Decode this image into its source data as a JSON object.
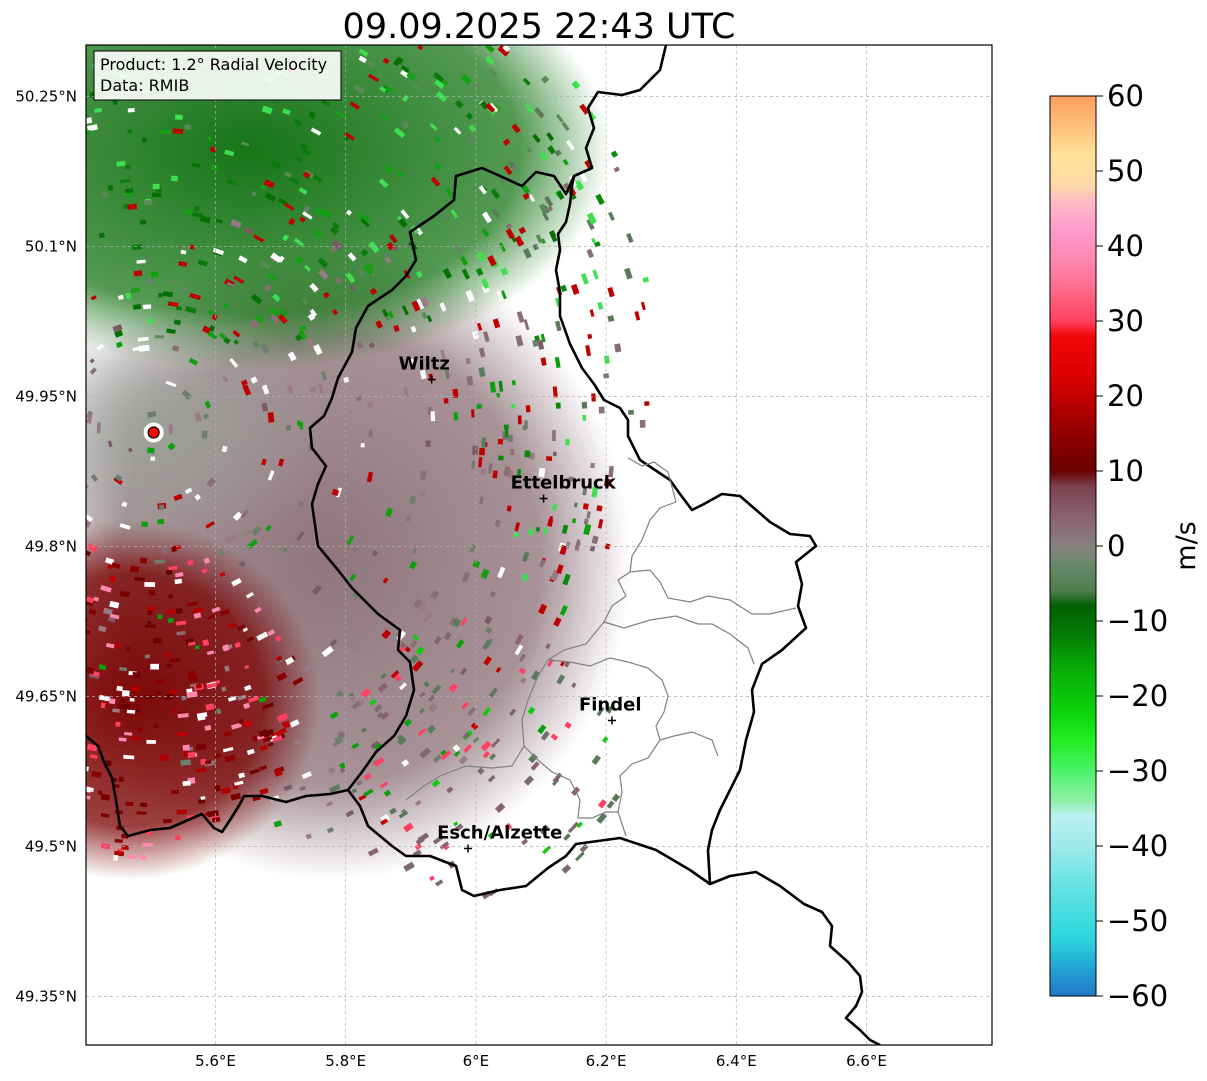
{
  "title": "09.09.2025 22:43 UTC",
  "info_box": {
    "product": "Product: 1.2° Radial Velocity",
    "source": "Data: RMIB"
  },
  "map": {
    "lon_range": [
      5.4,
      6.8
    ],
    "lat_range": [
      49.3,
      50.3
    ],
    "lon_ticks": [
      {
        "value": 5.6,
        "label": "5.6°E"
      },
      {
        "value": 5.8,
        "label": "5.8°E"
      },
      {
        "value": 6.0,
        "label": "6°E"
      },
      {
        "value": 6.2,
        "label": "6.2°E"
      },
      {
        "value": 6.4,
        "label": "6.4°E"
      },
      {
        "value": 6.6,
        "label": "6.6°E"
      }
    ],
    "lat_ticks": [
      {
        "value": 50.25,
        "label": "50.25°N"
      },
      {
        "value": 50.1,
        "label": "50.1°N"
      },
      {
        "value": 49.95,
        "label": "49.95°N"
      },
      {
        "value": 49.8,
        "label": "49.8°N"
      },
      {
        "value": 49.65,
        "label": "49.65°N"
      },
      {
        "value": 49.5,
        "label": "49.5°N"
      },
      {
        "value": 49.35,
        "label": "49.35°N"
      }
    ],
    "radar_site": {
      "lon": 5.505,
      "lat": 49.914,
      "color": "#ff0000"
    },
    "cities": [
      {
        "name": "Wiltz",
        "lon": 5.932,
        "lat": 49.967
      },
      {
        "name": "Ettelbruck",
        "lon": 6.104,
        "lat": 49.848
      },
      {
        "name": "Findel",
        "lon": 6.209,
        "lat": 49.626
      },
      {
        "name": "Esch/Alzette",
        "lon": 5.988,
        "lat": 49.498
      }
    ],
    "border_color": "#000000",
    "canton_color": "#808080"
  },
  "colorbar": {
    "label": "m/s",
    "min": -60,
    "max": 60,
    "ticks": [
      {
        "value": 60,
        "label": "60"
      },
      {
        "value": 50,
        "label": "50"
      },
      {
        "value": 40,
        "label": "40"
      },
      {
        "value": 30,
        "label": "30"
      },
      {
        "value": 20,
        "label": "20"
      },
      {
        "value": 10,
        "label": "10"
      },
      {
        "value": 0,
        "label": "0"
      },
      {
        "value": -10,
        "label": "−10"
      },
      {
        "value": -20,
        "label": "−20"
      },
      {
        "value": -30,
        "label": "−30"
      },
      {
        "value": -40,
        "label": "−40"
      },
      {
        "value": -50,
        "label": "−50"
      },
      {
        "value": -60,
        "label": "−60"
      }
    ],
    "stops": [
      {
        "v": -60,
        "c": "#1f78c8"
      },
      {
        "v": -56,
        "c": "#23a9d6"
      },
      {
        "v": -52,
        "c": "#2ed8de"
      },
      {
        "v": -46,
        "c": "#5fe2e2"
      },
      {
        "v": -40,
        "c": "#9eeaea"
      },
      {
        "v": -36,
        "c": "#bcf0f0"
      },
      {
        "v": -34,
        "c": "#8ef0a8"
      },
      {
        "v": -30,
        "c": "#4cf26a"
      },
      {
        "v": -26,
        "c": "#22ee22"
      },
      {
        "v": -22,
        "c": "#0cd20c"
      },
      {
        "v": -16,
        "c": "#07a907"
      },
      {
        "v": -12,
        "c": "#057d05"
      },
      {
        "v": -8,
        "c": "#006000"
      },
      {
        "v": -6,
        "c": "#4e7d4e"
      },
      {
        "v": -2,
        "c": "#6e8a6e"
      },
      {
        "v": 0,
        "c": "#8a8080"
      },
      {
        "v": 4,
        "c": "#8a6070"
      },
      {
        "v": 8,
        "c": "#7c4050"
      },
      {
        "v": 10,
        "c": "#6a0000"
      },
      {
        "v": 14,
        "c": "#8a0000"
      },
      {
        "v": 18,
        "c": "#b00000"
      },
      {
        "v": 22,
        "c": "#d80000"
      },
      {
        "v": 28,
        "c": "#f20808"
      },
      {
        "v": 30,
        "c": "#ff4060"
      },
      {
        "v": 34,
        "c": "#ff6a88"
      },
      {
        "v": 38,
        "c": "#ff88b0"
      },
      {
        "v": 42,
        "c": "#ff99cc"
      },
      {
        "v": 46,
        "c": "#ffbbc4"
      },
      {
        "v": 48,
        "c": "#ffd8a8"
      },
      {
        "v": 52,
        "c": "#ffe39a"
      },
      {
        "v": 56,
        "c": "#ffbf7a"
      },
      {
        "v": 60,
        "c": "#ff9e5e"
      }
    ]
  }
}
